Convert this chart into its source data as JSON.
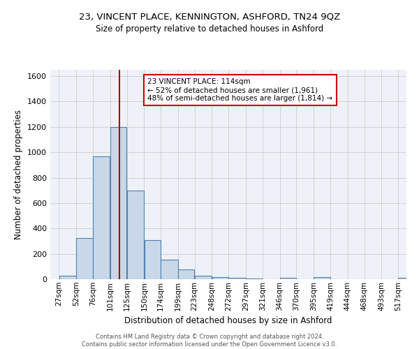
{
  "title1": "23, VINCENT PLACE, KENNINGTON, ASHFORD, TN24 9QZ",
  "title2": "Size of property relative to detached houses in Ashford",
  "xlabel": "Distribution of detached houses by size in Ashford",
  "ylabel": "Number of detached properties",
  "footer1": "Contains HM Land Registry data © Crown copyright and database right 2024.",
  "footer2": "Contains public sector information licensed under the Open Government Licence v3.0.",
  "bar_labels": [
    "27sqm",
    "52sqm",
    "76sqm",
    "101sqm",
    "125sqm",
    "150sqm",
    "174sqm",
    "199sqm",
    "223sqm",
    "248sqm",
    "272sqm",
    "297sqm",
    "321sqm",
    "346sqm",
    "370sqm",
    "395sqm",
    "419sqm",
    "444sqm",
    "468sqm",
    "493sqm",
    "517sqm"
  ],
  "bar_heights": [
    27,
    325,
    968,
    1197,
    700,
    307,
    155,
    75,
    27,
    18,
    12,
    8,
    0,
    12,
    0,
    15,
    0,
    0,
    0,
    0,
    12
  ],
  "bar_color": "#c8d8e8",
  "bar_edge_color": "#5080b0",
  "grid_color": "#cccccc",
  "bg_color": "#eef2f8",
  "vline_x": 114,
  "vline_color": "#aa0000",
  "annotation_line1": "23 VINCENT PLACE: 114sqm",
  "annotation_line2": "← 52% of detached houses are smaller (1,961)",
  "annotation_line3": "48% of semi-detached houses are larger (1,814) →",
  "annotation_box_color": "#ffffff",
  "annotation_box_edge": "#cc0000",
  "ylim": [
    0,
    1650
  ],
  "yticks": [
    0,
    200,
    400,
    600,
    800,
    1000,
    1200,
    1400,
    1600
  ],
  "property_size": 114
}
